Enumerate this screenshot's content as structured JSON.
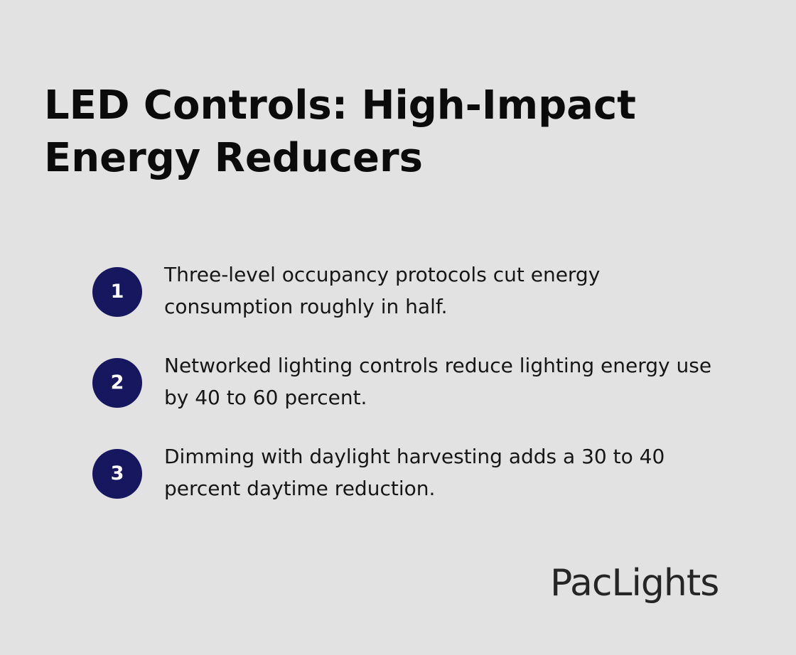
{
  "header": {
    "title_line1": "LED Controls: High-Impact",
    "title_line2": "Energy Reducers"
  },
  "items": [
    {
      "number": "1",
      "line1": "Three-level occupancy protocols cut energy",
      "line2": "consumption roughly in half."
    },
    {
      "number": "2",
      "line1": "Networked lighting controls reduce lighting energy use",
      "line2": "by 40 to 60 percent."
    },
    {
      "number": "3",
      "line1": "Dimming with daylight harvesting adds a 30 to 40",
      "line2": "percent daytime reduction."
    }
  ],
  "brand": {
    "logo_text": "PacLights"
  },
  "colors": {
    "background": "#e1e2e1",
    "badge": "#171760",
    "title_text": "#0b0b0b"
  }
}
